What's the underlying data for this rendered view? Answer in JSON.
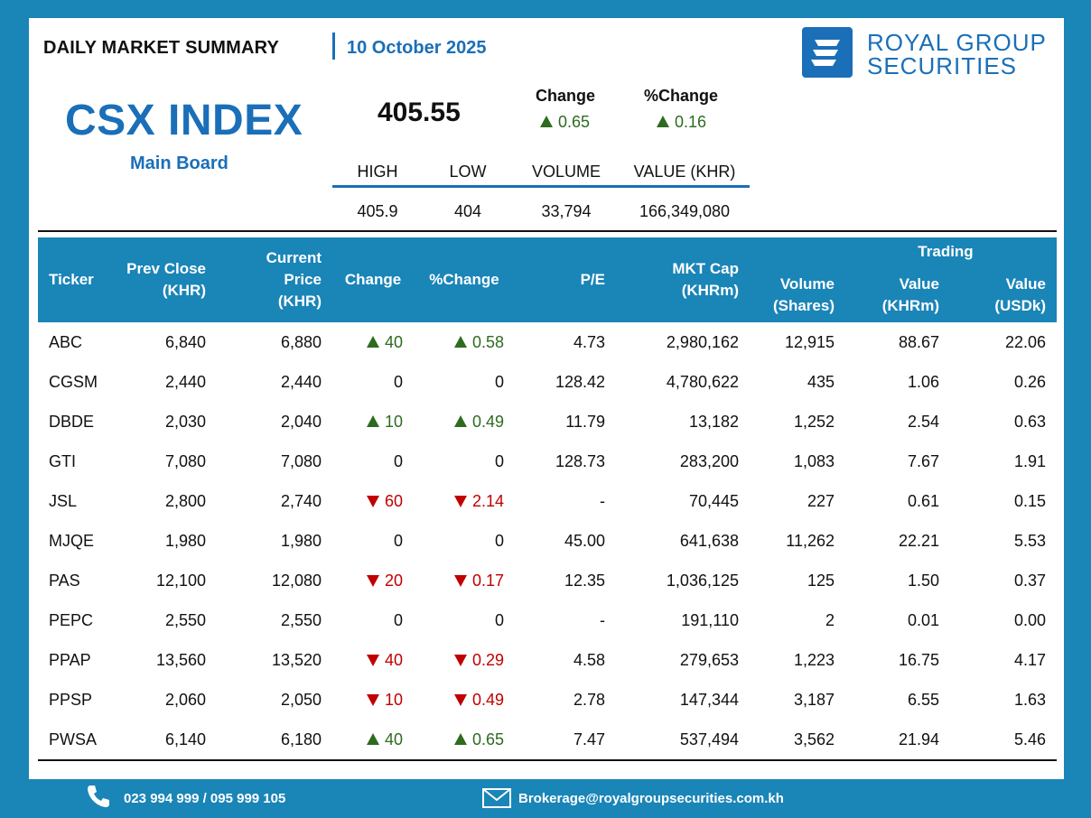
{
  "header": {
    "title": "DAILY MARKET SUMMARY",
    "date": "10 October 2025"
  },
  "logo": {
    "line1": "ROYAL GROUP",
    "line2": "SECURITIES"
  },
  "index": {
    "name": "CSX INDEX",
    "board": "Main Board",
    "value": "405.55",
    "change_label": "Change",
    "change": "0.65",
    "pct_change_label": "%Change",
    "pct_change": "0.16",
    "direction": "up",
    "stats": [
      {
        "label": "HIGH",
        "value": "405.9"
      },
      {
        "label": "LOW",
        "value": "404"
      },
      {
        "label": "VOLUME",
        "value": "33,794"
      },
      {
        "label": "VALUE (KHR)",
        "value": "166,349,080"
      }
    ]
  },
  "table": {
    "headers": {
      "ticker": "Ticker",
      "prev_close": [
        "Prev Close",
        "(KHR)"
      ],
      "current_price": [
        "Current Price",
        "(KHR)"
      ],
      "change": "Change",
      "pct_change": "%Change",
      "pe": "P/E",
      "mkt_cap": [
        "MKT Cap",
        "(KHRm)"
      ],
      "volume": [
        "Volume",
        "(Shares)"
      ],
      "trading": "Trading",
      "value_khrm": [
        "Value",
        "(KHRm)"
      ],
      "value_usdk": [
        "Value",
        "(USDk)"
      ]
    },
    "rows": [
      {
        "ticker": "ABC",
        "prev": "6,840",
        "cur": "6,880",
        "dir": "up",
        "chg": "40",
        "pct": "0.58",
        "pe": "4.73",
        "cap": "2,980,162",
        "vol": "12,915",
        "val_khr": "88.67",
        "val_usd": "22.06"
      },
      {
        "ticker": "CGSM",
        "prev": "2,440",
        "cur": "2,440",
        "dir": "flat",
        "chg": "0",
        "pct": "0",
        "pe": "128.42",
        "cap": "4,780,622",
        "vol": "435",
        "val_khr": "1.06",
        "val_usd": "0.26"
      },
      {
        "ticker": "DBDE",
        "prev": "2,030",
        "cur": "2,040",
        "dir": "up",
        "chg": "10",
        "pct": "0.49",
        "pe": "11.79",
        "cap": "13,182",
        "vol": "1,252",
        "val_khr": "2.54",
        "val_usd": "0.63"
      },
      {
        "ticker": "GTI",
        "prev": "7,080",
        "cur": "7,080",
        "dir": "flat",
        "chg": "0",
        "pct": "0",
        "pe": "128.73",
        "cap": "283,200",
        "vol": "1,083",
        "val_khr": "7.67",
        "val_usd": "1.91"
      },
      {
        "ticker": "JSL",
        "prev": "2,800",
        "cur": "2,740",
        "dir": "down",
        "chg": "60",
        "pct": "2.14",
        "pe": "-",
        "cap": "70,445",
        "vol": "227",
        "val_khr": "0.61",
        "val_usd": "0.15"
      },
      {
        "ticker": "MJQE",
        "prev": "1,980",
        "cur": "1,980",
        "dir": "flat",
        "chg": "0",
        "pct": "0",
        "pe": "45.00",
        "cap": "641,638",
        "vol": "11,262",
        "val_khr": "22.21",
        "val_usd": "5.53"
      },
      {
        "ticker": "PAS",
        "prev": "12,100",
        "cur": "12,080",
        "dir": "down",
        "chg": "20",
        "pct": "0.17",
        "pe": "12.35",
        "cap": "1,036,125",
        "vol": "125",
        "val_khr": "1.50",
        "val_usd": "0.37"
      },
      {
        "ticker": "PEPC",
        "prev": "2,550",
        "cur": "2,550",
        "dir": "flat",
        "chg": "0",
        "pct": "0",
        "pe": "-",
        "cap": "191,110",
        "vol": "2",
        "val_khr": "0.01",
        "val_usd": "0.00"
      },
      {
        "ticker": "PPAP",
        "prev": "13,560",
        "cur": "13,520",
        "dir": "down",
        "chg": "40",
        "pct": "0.29",
        "pe": "4.58",
        "cap": "279,653",
        "vol": "1,223",
        "val_khr": "16.75",
        "val_usd": "4.17"
      },
      {
        "ticker": "PPSP",
        "prev": "2,060",
        "cur": "2,050",
        "dir": "down",
        "chg": "10",
        "pct": "0.49",
        "pe": "2.78",
        "cap": "147,344",
        "vol": "3,187",
        "val_khr": "6.55",
        "val_usd": "1.63"
      },
      {
        "ticker": "PWSA",
        "prev": "6,140",
        "cur": "6,180",
        "dir": "up",
        "chg": "40",
        "pct": "0.65",
        "pe": "7.47",
        "cap": "537,494",
        "vol": "3,562",
        "val_khr": "21.94",
        "val_usd": "5.46"
      }
    ]
  },
  "footer": {
    "phone": "023 994 999 / 095 999 105",
    "email": "Brokerage@royalgroupsecurities.com.kh",
    "phone_icon": "phone-icon",
    "email_icon": "envelope-icon"
  },
  "colors": {
    "frame": "#1a85b7",
    "brand": "#1a6fb8",
    "up": "#2e6b1f",
    "down": "#c00000"
  }
}
